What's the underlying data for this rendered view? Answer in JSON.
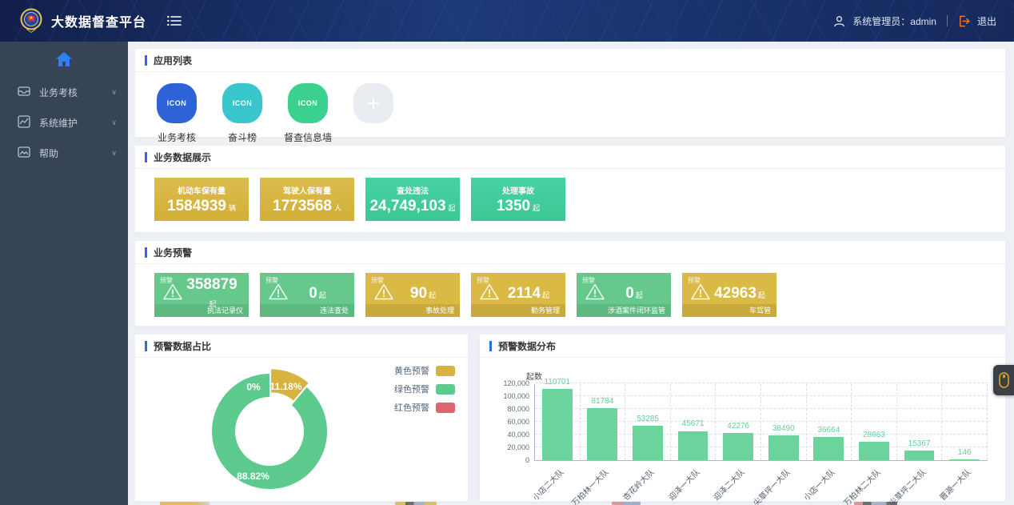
{
  "header": {
    "title": "大数据督查平台",
    "user_label": "系统管理员：admin",
    "logout_label": "退出"
  },
  "sidebar": {
    "items": [
      {
        "label": "业务考核",
        "icon": "inbox-icon"
      },
      {
        "label": "系统维护",
        "icon": "line-chart-icon"
      },
      {
        "label": "帮助",
        "icon": "image-icon"
      }
    ]
  },
  "sections": {
    "apps_title": "应用列表",
    "biz_data_title": "业务数据展示",
    "biz_warning_title": "业务预警",
    "pie_title": "预警数据占比",
    "bar_title": "预警数据分布"
  },
  "apps": {
    "items": [
      {
        "label": "业务考核",
        "icon_text": "ICON",
        "color": "#2e63d8"
      },
      {
        "label": "奋斗榜",
        "icon_text": "ICON",
        "color": "#38c5cb"
      },
      {
        "label": "督查信息墙",
        "icon_text": "ICON",
        "color": "#3bd08d"
      }
    ],
    "add_label": "+"
  },
  "stat_cards": [
    {
      "title": "机动车保有量",
      "value": "1584939",
      "unit": "辆",
      "theme": "gold"
    },
    {
      "title": "驾驶人保有量",
      "value": "1773568",
      "unit": "人",
      "theme": "gold"
    },
    {
      "title": "查处违法",
      "value": "24,749,103",
      "unit": "起",
      "theme": "green"
    },
    {
      "title": "处理事故",
      "value": "1350",
      "unit": "起",
      "theme": "green"
    }
  ],
  "warning_cards": [
    {
      "tag": "预警",
      "value": "358879",
      "unit": "起",
      "label": "执法记录仪",
      "theme": "green"
    },
    {
      "tag": "预警",
      "value": "0",
      "unit": "起",
      "label": "违法查处",
      "theme": "green"
    },
    {
      "tag": "预警",
      "value": "90",
      "unit": "起",
      "label": "事故处理",
      "theme": "gold"
    },
    {
      "tag": "预警",
      "value": "2114",
      "unit": "起",
      "label": "勤务管理",
      "theme": "gold"
    },
    {
      "tag": "预警",
      "value": "0",
      "unit": "起",
      "label": "涉酒案件闭环监管",
      "theme": "green"
    },
    {
      "tag": "预警",
      "value": "42963",
      "unit": "起",
      "label": "车驾管",
      "theme": "gold"
    }
  ],
  "chart_data": [
    {
      "type": "pie",
      "title": "预警数据占比",
      "donut": true,
      "legend_position": "top-right",
      "series": [
        {
          "name": "黄色预警",
          "value": 11.18,
          "label": "11.18%",
          "color": "#d9b33f",
          "exploded": true
        },
        {
          "name": "绿色预警",
          "value": 88.82,
          "label": "88.82%",
          "color": "#5ecb8e",
          "exploded": false
        },
        {
          "name": "红色预警",
          "value": 0,
          "label": "0%",
          "color": "#dd6570",
          "exploded": false
        }
      ],
      "unit": "%"
    },
    {
      "type": "bar",
      "title": "预警数据分布",
      "ylabel": "起数",
      "xlabel": "",
      "ylim": [
        0,
        120000
      ],
      "ytick_step": 20000,
      "grid": "dashed",
      "bar_color": "#6bd49c",
      "categories": [
        "小店二大队",
        "万柏林一大队",
        "杏花岭大队",
        "迎泽一大队",
        "迎泽二大队",
        "尖草坪一大队",
        "小店一大队",
        "万柏林二大队",
        "尖草坪二大队",
        "晋源一大队"
      ],
      "values": [
        110701,
        81784,
        53285,
        45671,
        42276,
        38490,
        36664,
        28663,
        15367,
        146
      ]
    }
  ],
  "colors": {
    "accent_blue": "#2a6ce8",
    "home_blue": "#2e7ff7",
    "gold": "#d9b845",
    "green": "#66c98b",
    "stat_green": "#41cf9e",
    "red": "#dd6570",
    "logout_orange": "#e2773a"
  }
}
